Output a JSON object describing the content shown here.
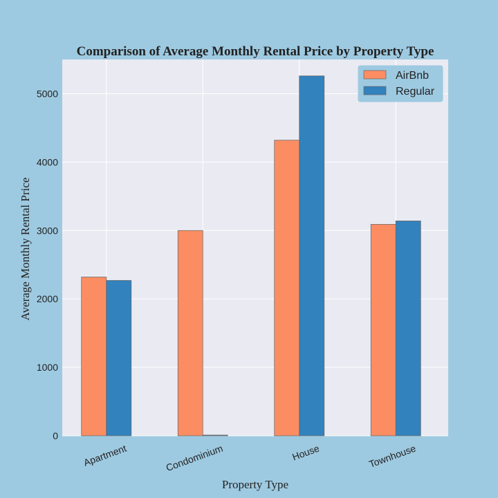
{
  "chart_data": {
    "type": "bar",
    "title": "Comparison of Average Monthly Rental Price by Property Type",
    "xlabel": "Property Type",
    "ylabel": "Average Monthly Rental Price",
    "categories": [
      "Apartment",
      "Condominium",
      "House",
      "Townhouse"
    ],
    "series": [
      {
        "name": "AirBnb",
        "color": "#fc8d62",
        "values": [
          2320,
          3000,
          4320,
          3090
        ]
      },
      {
        "name": "Regular",
        "color": "#3182bd",
        "values": [
          2270,
          10,
          5260,
          3140
        ]
      }
    ],
    "ylim": [
      0,
      5500
    ],
    "yticks": [
      0,
      1000,
      2000,
      3000,
      4000,
      5000
    ],
    "grid": true,
    "legend": "top-right",
    "plot_background": "#eaeaf2",
    "figure_background": "#9ecae1"
  }
}
